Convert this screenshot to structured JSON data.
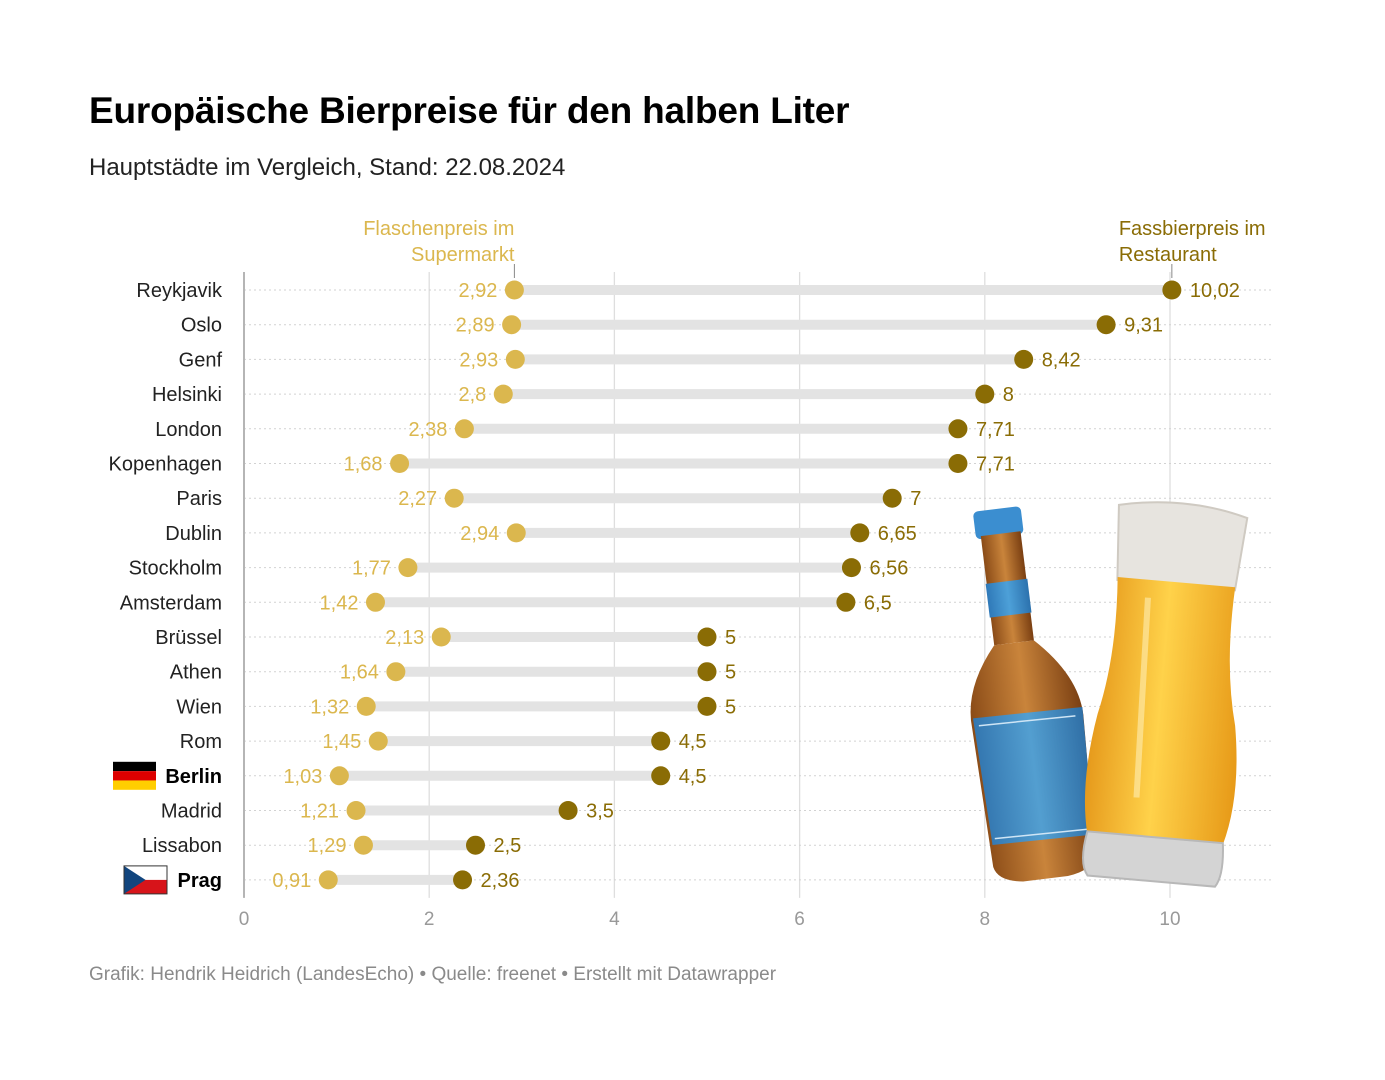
{
  "header": {
    "title": "Europäische Bierpreise für den halben Liter",
    "subtitle": "Hauptstädte im Vergleich, Stand: 22.08.2024"
  },
  "footer": {
    "text": "Grafik: Hendrik Heidrich (LandesEcho) • Quelle: freenet • Erstellt mit Datawrapper"
  },
  "colors": {
    "bottle": "#dbb74e",
    "draft": "#8a6c05",
    "range_bar": "#e3e3e3",
    "gridline": "#dedede",
    "tick_text": "#999999"
  },
  "chart_data": {
    "type": "dot_range",
    "title": "Europäische Bierpreise für den halben Liter",
    "subtitle": "Hauptstädte im Vergleich, Stand: 22.08.2024",
    "xlim": [
      0,
      11
    ],
    "x_ticks": [
      0,
      2,
      4,
      6,
      8,
      10
    ],
    "x_tick_labels": [
      "0",
      "2",
      "4",
      "6",
      "8",
      "10"
    ],
    "grid": true,
    "annotations": [
      {
        "series": "bottle",
        "lines": [
          "Flaschenpreis im",
          "Supermarkt"
        ],
        "anchor_value": 2.92
      },
      {
        "series": "draft",
        "lines": [
          "Fassbierpreis im",
          "Restaurant"
        ],
        "anchor_value": 10.02
      }
    ],
    "rows": [
      {
        "city": "Reykjavik",
        "bottle": 2.92,
        "bottle_label": "2,92",
        "draft": 10.02,
        "draft_label": "10,02"
      },
      {
        "city": "Oslo",
        "bottle": 2.89,
        "bottle_label": "2,89",
        "draft": 9.31,
        "draft_label": "9,31"
      },
      {
        "city": "Genf",
        "bottle": 2.93,
        "bottle_label": "2,93",
        "draft": 8.42,
        "draft_label": "8,42"
      },
      {
        "city": "Helsinki",
        "bottle": 2.8,
        "bottle_label": "2,8",
        "draft": 8,
        "draft_label": "8"
      },
      {
        "city": "London",
        "bottle": 2.38,
        "bottle_label": "2,38",
        "draft": 7.71,
        "draft_label": "7,71"
      },
      {
        "city": "Kopenhagen",
        "bottle": 1.68,
        "bottle_label": "1,68",
        "draft": 7.71,
        "draft_label": "7,71"
      },
      {
        "city": "Paris",
        "bottle": 2.27,
        "bottle_label": "2,27",
        "draft": 7,
        "draft_label": "7"
      },
      {
        "city": "Dublin",
        "bottle": 2.94,
        "bottle_label": "2,94",
        "draft": 6.65,
        "draft_label": "6,65"
      },
      {
        "city": "Stockholm",
        "bottle": 1.77,
        "bottle_label": "1,77",
        "draft": 6.56,
        "draft_label": "6,56"
      },
      {
        "city": "Amsterdam",
        "bottle": 1.42,
        "bottle_label": "1,42",
        "draft": 6.5,
        "draft_label": "6,5"
      },
      {
        "city": "Brüssel",
        "bottle": 2.13,
        "bottle_label": "2,13",
        "draft": 5,
        "draft_label": "5"
      },
      {
        "city": "Athen",
        "bottle": 1.64,
        "bottle_label": "1,64",
        "draft": 5,
        "draft_label": "5"
      },
      {
        "city": "Wien",
        "bottle": 1.32,
        "bottle_label": "1,32",
        "draft": 5,
        "draft_label": "5"
      },
      {
        "city": "Rom",
        "bottle": 1.45,
        "bottle_label": "1,45",
        "draft": 4.5,
        "draft_label": "4,5"
      },
      {
        "city": "Berlin",
        "bottle": 1.03,
        "bottle_label": "1,03",
        "draft": 4.5,
        "draft_label": "4,5",
        "highlight": true,
        "flag": "germany-flag"
      },
      {
        "city": "Madrid",
        "bottle": 1.21,
        "bottle_label": "1,21",
        "draft": 3.5,
        "draft_label": "3,5"
      },
      {
        "city": "Lissabon",
        "bottle": 1.29,
        "bottle_label": "1,29",
        "draft": 2.5,
        "draft_label": "2,5"
      },
      {
        "city": "Prag",
        "bottle": 0.91,
        "bottle_label": "0,91",
        "draft": 2.36,
        "draft_label": "2,36",
        "highlight": true,
        "flag": "czech-flag"
      }
    ]
  }
}
